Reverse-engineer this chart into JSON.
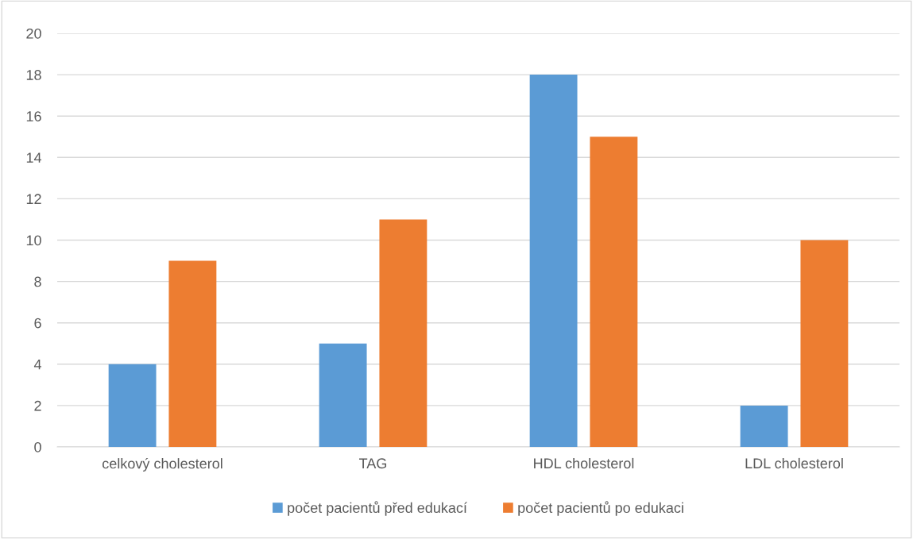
{
  "chart_data": {
    "type": "bar",
    "categories": [
      "celkový cholesterol",
      "TAG",
      "HDL cholesterol",
      "LDL cholesterol"
    ],
    "series": [
      {
        "name": "počet pacientů před edukací",
        "color": "#5b9bd5",
        "values": [
          4,
          5,
          18,
          2
        ]
      },
      {
        "name": "počet pacientů po edukaci",
        "color": "#ed7d31",
        "values": [
          9,
          11,
          15,
          10
        ]
      }
    ],
    "ylim": [
      0,
      20
    ],
    "yticks": [
      0,
      2,
      4,
      6,
      8,
      10,
      12,
      14,
      16,
      18,
      20
    ],
    "grid": "y",
    "legend": "bottom"
  }
}
